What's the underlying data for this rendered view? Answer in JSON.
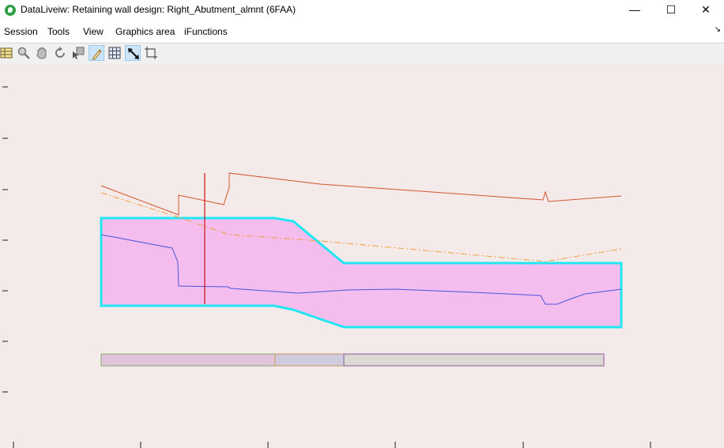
{
  "window": {
    "title": "DataLiveiw: Retaining wall design: Right_Abutment_almnt (6FAA)",
    "minimize_glyph": "—",
    "maximize_glyph": "☐",
    "close_glyph": "✕"
  },
  "menu": {
    "items": [
      "Session",
      "Tools",
      "View",
      "Graphics area",
      "iFunctions"
    ],
    "overflow_glyph": "↘"
  },
  "toolbar": {
    "tools": [
      {
        "icon": "table-icon",
        "active": false
      },
      {
        "icon": "zoom-icon",
        "active": false
      },
      {
        "icon": "pan-hand-icon",
        "active": false
      },
      {
        "icon": "rotate-icon",
        "active": false
      },
      {
        "icon": "select-tool-icon",
        "active": false
      },
      {
        "icon": "pencil-icon",
        "active": true
      },
      {
        "icon": "grid-icon",
        "active": false
      },
      {
        "icon": "resize-arrow-icon",
        "active": true
      },
      {
        "icon": "fit-frame-icon",
        "active": false
      }
    ]
  },
  "graphics": {
    "background": "#f4eaea",
    "wall_fill": "#f4bdee",
    "wall_outline": "#22e6f2",
    "terrain_line_color": "#d2552a",
    "dashed_line_color": "#f0a040",
    "profile_line_color": "#4a55d8",
    "section_marker_color": "#cc1111",
    "legend_segment_colors": [
      "#e2c3dc",
      "#d0cce0",
      "#dcd8d4"
    ]
  }
}
